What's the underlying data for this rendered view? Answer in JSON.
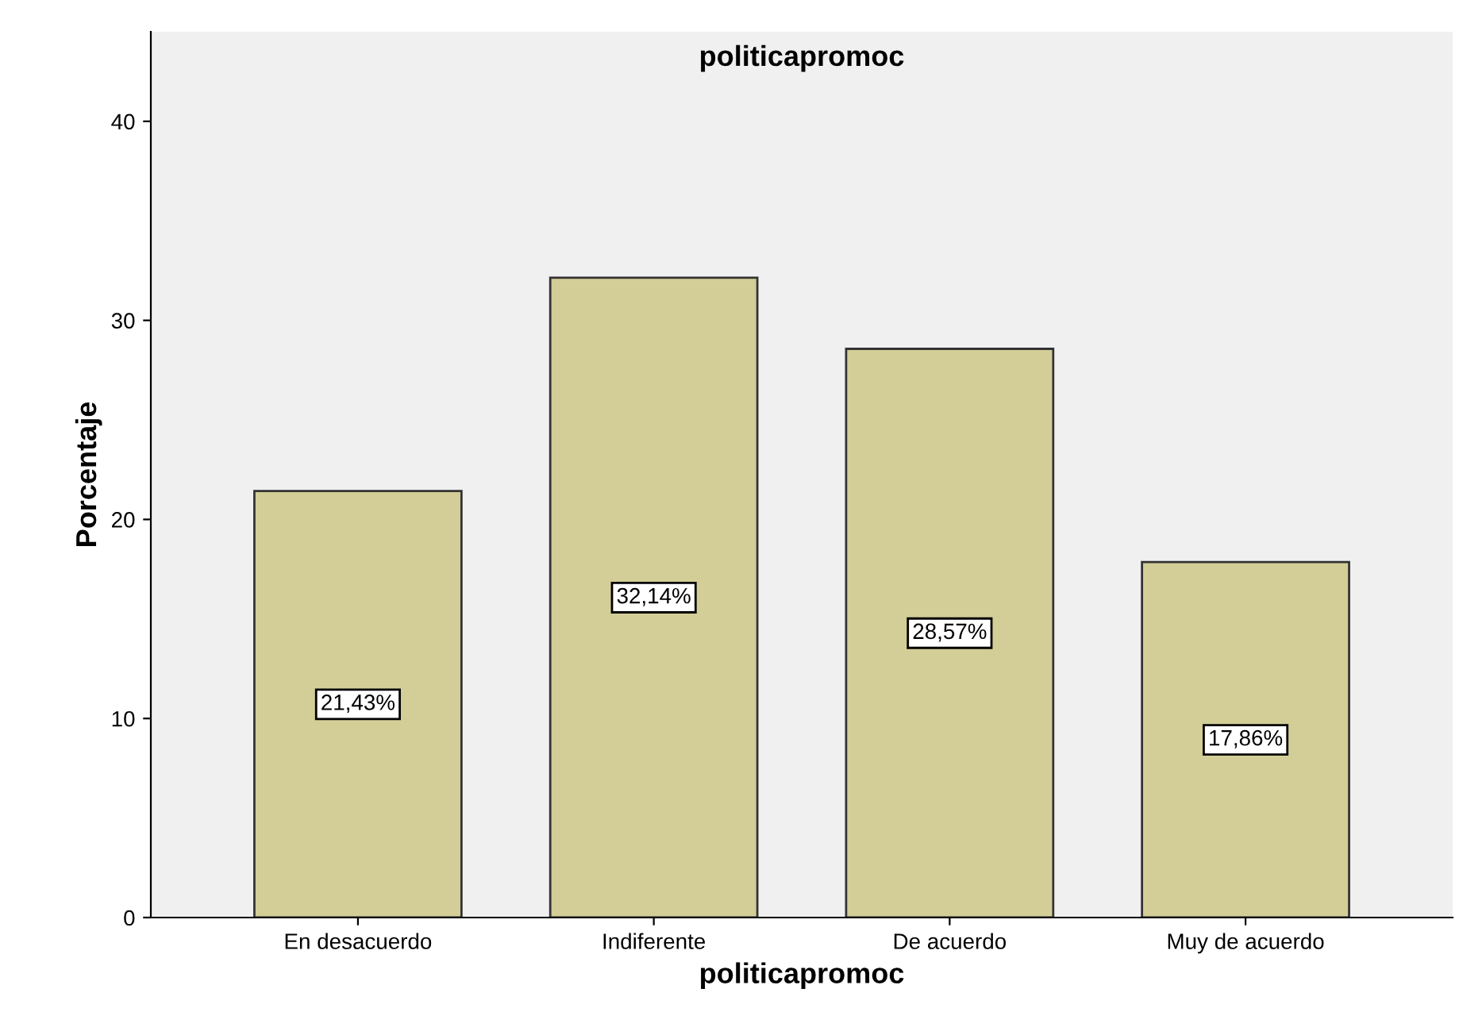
{
  "chart_data": {
    "type": "bar",
    "title": "politicapromoc",
    "xlabel": "politicapromoc",
    "ylabel": "Porcentaje",
    "categories": [
      "En desacuerdo",
      "Indiferente",
      "De acuerdo",
      "Muy de acuerdo"
    ],
    "values": [
      21.43,
      32.14,
      28.57,
      17.86
    ],
    "value_labels": [
      "21,43%",
      "32,14%",
      "28,57%",
      "17,86%"
    ],
    "color": "#d3ce97",
    "ylim": [
      0,
      44.5
    ],
    "yticks": [
      0,
      10,
      20,
      30,
      40
    ],
    "grid": false,
    "legend": false
  }
}
